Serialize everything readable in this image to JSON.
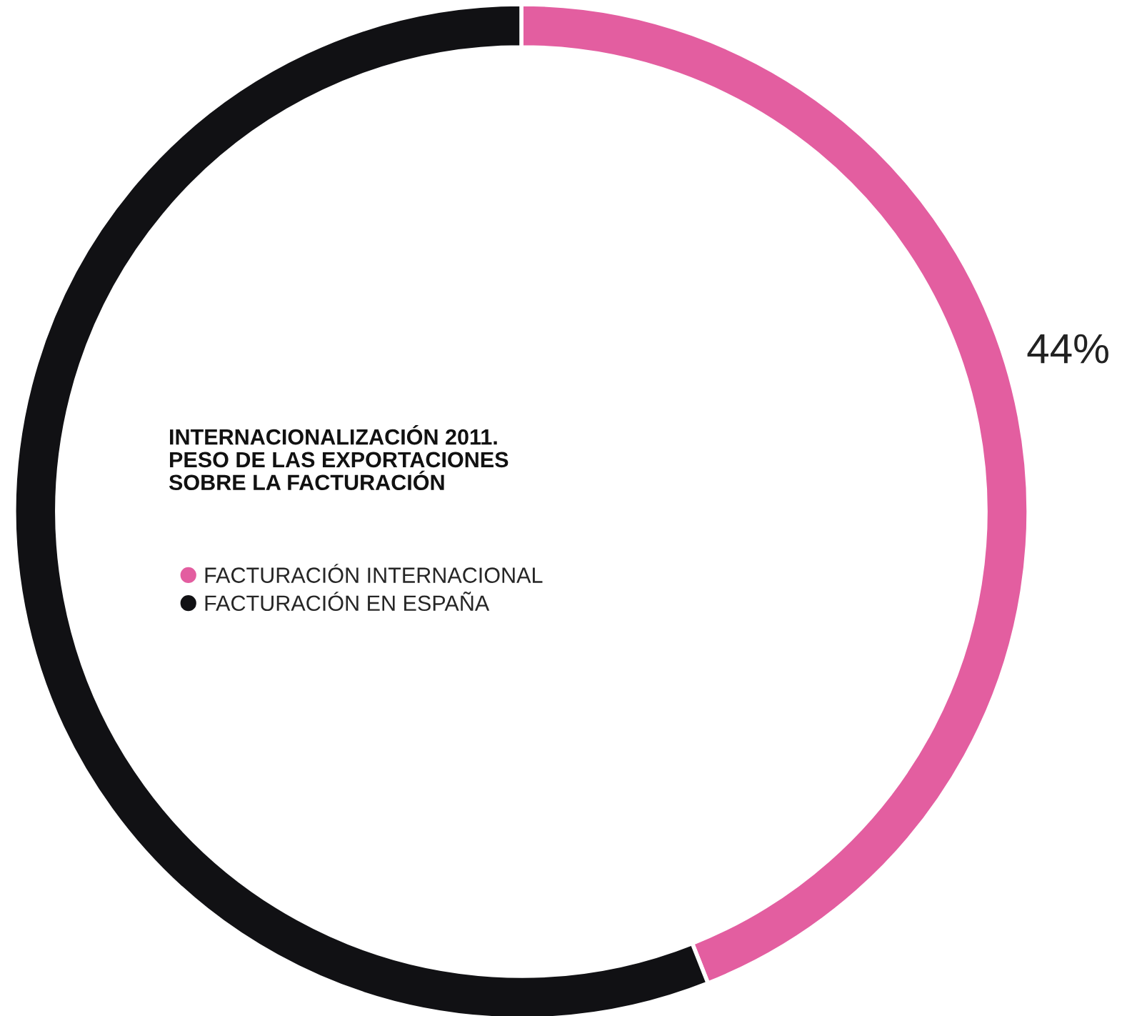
{
  "chart_data": {
    "type": "donut",
    "title": "INTERNACIONALIZACIÓN 2011.\nPESO DE LAS EXPORTACIONES\nSOBRE LA FACTURACIÓN",
    "categories": [
      "FACTURACIÓN INTERNACIONAL",
      "FACTURACIÓN EN ESPAÑA"
    ],
    "values": [
      44,
      56
    ],
    "colors": [
      "#e35ea0",
      "#111114"
    ],
    "value_labels": [
      "44%",
      null
    ],
    "legend": "center"
  }
}
